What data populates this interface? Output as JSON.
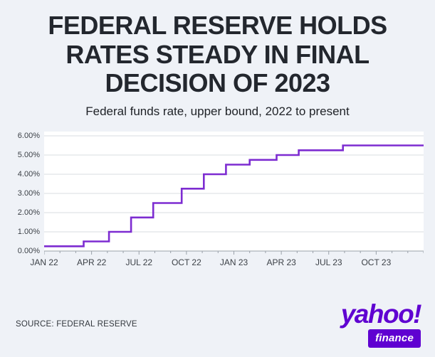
{
  "header": {
    "title_lines": [
      "FEDERAL RESERVE HOLDS",
      "RATES STEADY IN FINAL",
      "DECISION OF 2023"
    ],
    "subtitle": "Federal funds rate, upper bound, 2022 to present"
  },
  "chart_data": {
    "type": "line",
    "variant": "step",
    "title": "FEDERAL RESERVE HOLDS RATES STEADY IN FINAL DECISION OF 2023",
    "subtitle": "Federal funds rate, upper bound, 2022 to present",
    "ylabel": "Federal funds rate, upper bound (%)",
    "xlabel": "",
    "grid": true,
    "legend": "none",
    "line_color": "#7d2cd1",
    "ylim": [
      0,
      6
    ],
    "x_range_months": [
      0,
      24
    ],
    "y_tick_labels": [
      "0.00%",
      "1.00%",
      "2.00%",
      "3.00%",
      "4.00%",
      "5.00%",
      "6.00%"
    ],
    "x_tick_labels": [
      "JAN 22",
      "APR 22",
      "JUL 22",
      "OCT 22",
      "JAN 23",
      "APR 23",
      "JUL 23",
      "OCT 23"
    ],
    "x_tick_months": [
      0,
      3,
      6,
      9,
      12,
      15,
      18,
      21
    ],
    "points": [
      {
        "month": 0.0,
        "rate": 0.25
      },
      {
        "month": 2.5,
        "rate": 0.5
      },
      {
        "month": 4.1,
        "rate": 1.0
      },
      {
        "month": 5.5,
        "rate": 1.75
      },
      {
        "month": 6.9,
        "rate": 2.5
      },
      {
        "month": 8.7,
        "rate": 3.25
      },
      {
        "month": 10.1,
        "rate": 4.0
      },
      {
        "month": 11.5,
        "rate": 4.5
      },
      {
        "month": 13.0,
        "rate": 4.75
      },
      {
        "month": 14.7,
        "rate": 5.0
      },
      {
        "month": 16.1,
        "rate": 5.25
      },
      {
        "month": 18.9,
        "rate": 5.5
      },
      {
        "month": 24.0,
        "rate": 5.5
      }
    ]
  },
  "footer": {
    "source": "SOURCE: FEDERAL RESERVE"
  },
  "logo": {
    "wordmark": "yahoo!",
    "sub": "finance",
    "color": "#5f01d1"
  }
}
